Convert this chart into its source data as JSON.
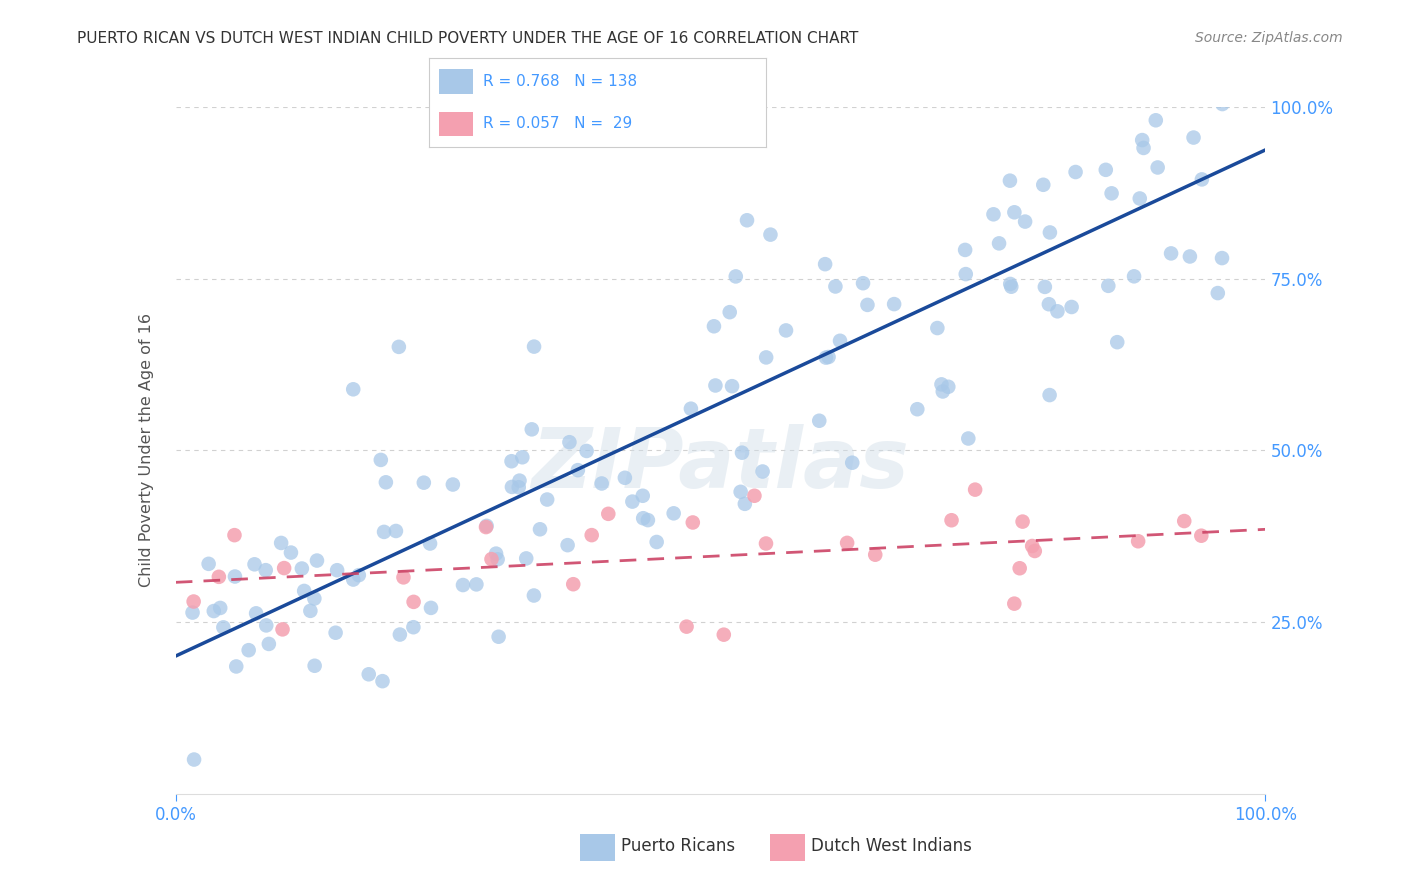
{
  "title": "PUERTO RICAN VS DUTCH WEST INDIAN CHILD POVERTY UNDER THE AGE OF 16 CORRELATION CHART",
  "source": "Source: ZipAtlas.com",
  "ylabel": "Child Poverty Under the Age of 16",
  "xlim": [
    0,
    1.0
  ],
  "ylim": [
    0,
    1.0
  ],
  "blue_R": 0.768,
  "blue_N": 138,
  "pink_R": 0.057,
  "pink_N": 29,
  "blue_color": "#a8c8e8",
  "pink_color": "#f4a0b0",
  "blue_line_color": "#1a4a9a",
  "pink_line_color": "#cc4466",
  "background_color": "#ffffff",
  "grid_color": "#cccccc",
  "title_color": "#333333",
  "source_color": "#888888",
  "tick_color": "#4499ff",
  "watermark": "ZIPatlas",
  "seed_blue": 42,
  "seed_pink": 99
}
